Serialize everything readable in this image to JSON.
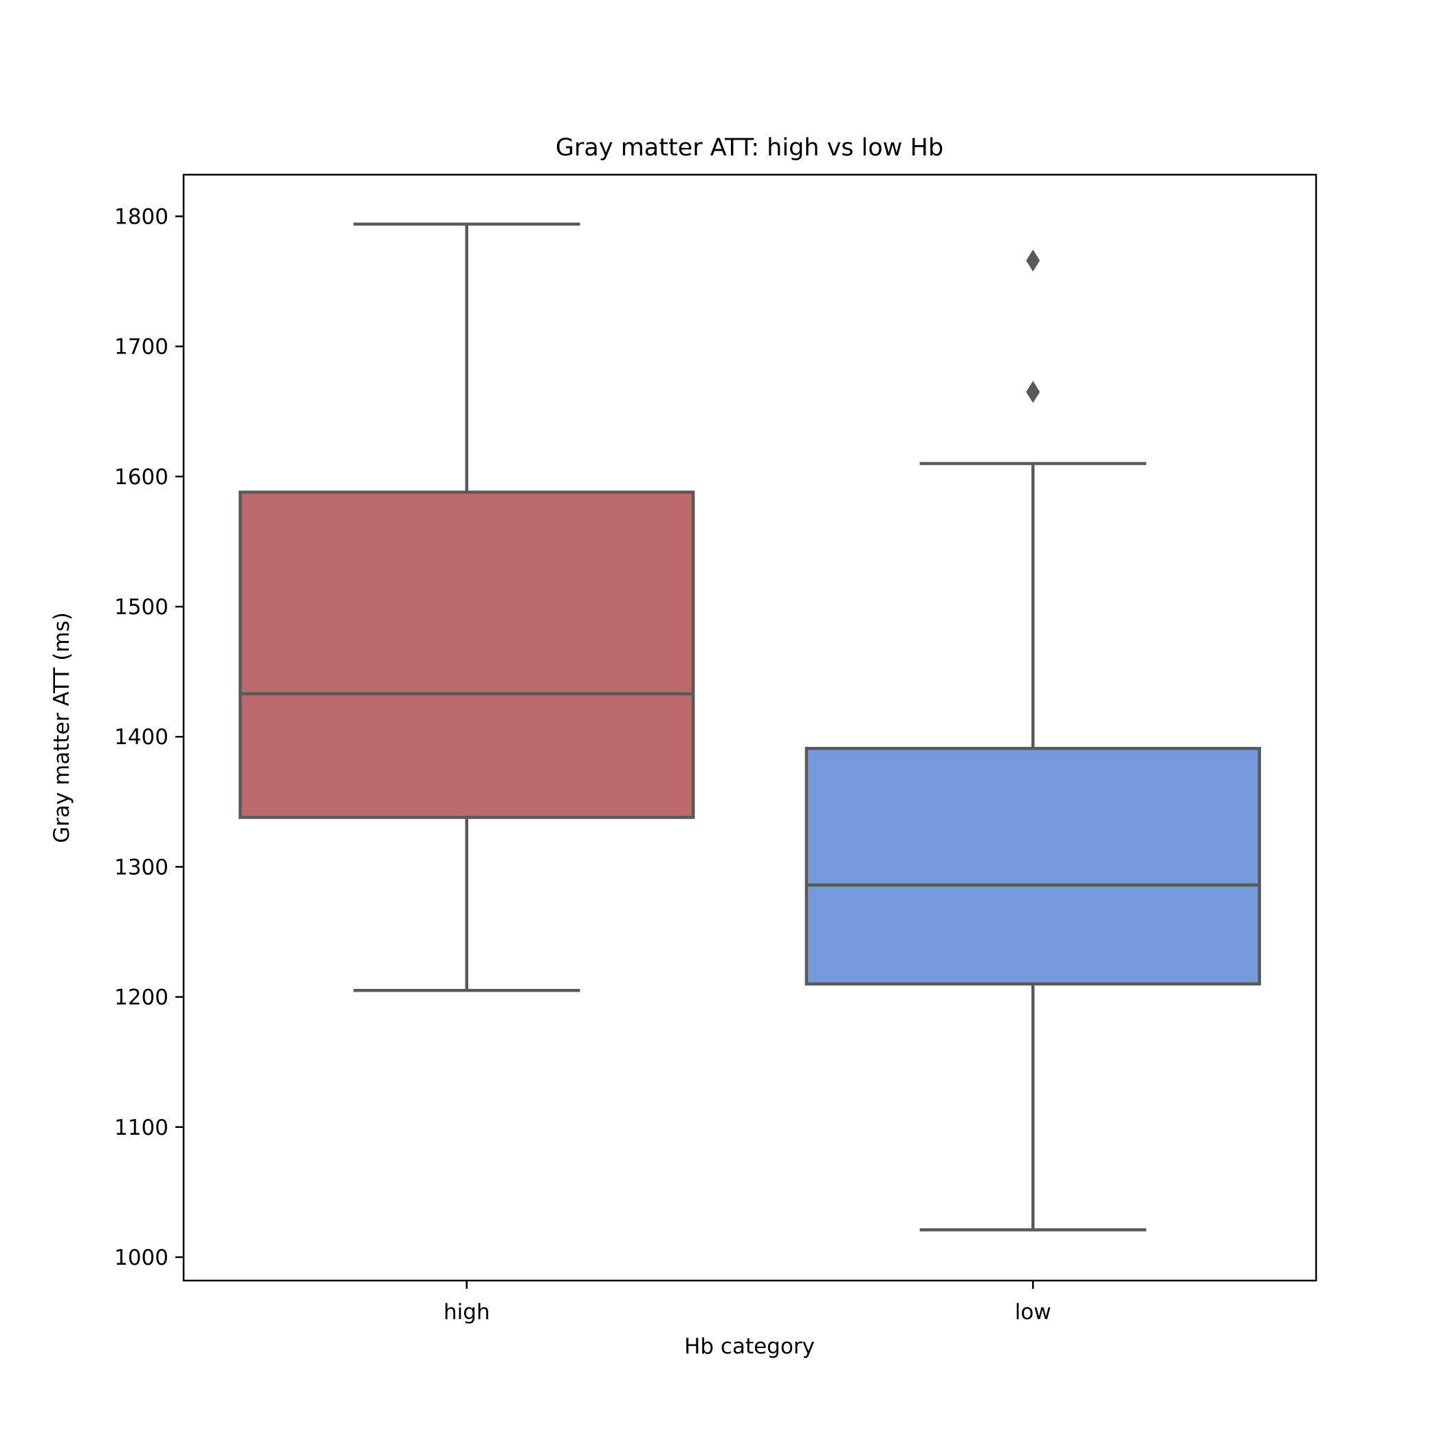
{
  "chart_data": {
    "type": "box",
    "title": "Gray matter ATT: high vs low Hb",
    "xlabel": "Hb category",
    "ylabel": "Gray matter ATT (ms)",
    "categories": [
      "high",
      "low"
    ],
    "ylim": [
      982,
      1832
    ],
    "yticks": [
      1000,
      1100,
      1200,
      1300,
      1400,
      1500,
      1600,
      1700,
      1800
    ],
    "grid": false,
    "boxes": [
      {
        "category": "high",
        "whisker_low": 1205,
        "q1": 1338,
        "median": 1433,
        "q3": 1588,
        "whisker_high": 1794,
        "outliers": [],
        "color": "#bd6a6a"
      },
      {
        "category": "low",
        "whisker_low": 1021,
        "q1": 1210,
        "median": 1286,
        "q3": 1391,
        "whisker_high": 1610,
        "outliers": [
          1665,
          1766
        ],
        "color": "#7699db"
      }
    ],
    "colors": {
      "line": "#595959",
      "axis": "#000000"
    }
  }
}
